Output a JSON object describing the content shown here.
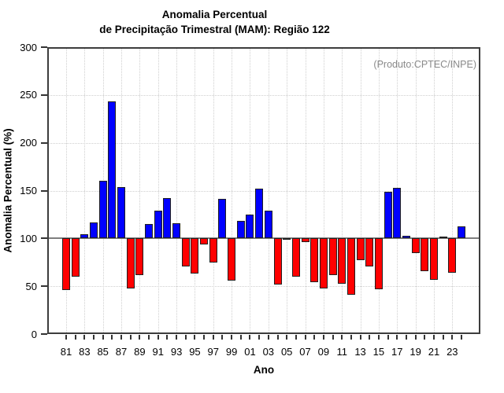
{
  "figure": {
    "title_line1": "Anomalia Percentual",
    "title_line2": "de Precipitação Trimestral (MAM): Região 122",
    "annotation": "(Produto:CPTEC/INPE)",
    "xlabel": "Ano",
    "ylabel": "Anomalia Percentual (%)"
  },
  "chart_data": {
    "type": "bar",
    "title": "Anomalia Percentual de Precipitação Trimestral (MAM): Região 122",
    "subtitle": "(Produto:CPTEC/INPE)",
    "xlabel": "Ano",
    "ylabel": "Anomalia Percentual (%)",
    "ylim": [
      0,
      300
    ],
    "yticks": [
      0,
      50,
      100,
      150,
      200,
      250,
      300
    ],
    "baseline": 100,
    "grid": true,
    "legend_position": "none",
    "bar_color_above": "#0000ff",
    "bar_color_below": "#ff0000",
    "baseline_color": "#7f7f7f",
    "grid_color": "#cfcfcf",
    "annotation_color": "#8a8a8a",
    "x": [
      1981,
      1982,
      1983,
      1984,
      1985,
      1986,
      1987,
      1988,
      1989,
      1990,
      1991,
      1992,
      1993,
      1994,
      1995,
      1996,
      1997,
      1998,
      1999,
      2000,
      2001,
      2002,
      2003,
      2004,
      2005,
      2006,
      2007,
      2008,
      2009,
      2010,
      2011,
      2012,
      2013,
      2014,
      2015,
      2016,
      2017,
      2018,
      2019,
      2020,
      2021,
      2022,
      2023,
      2024
    ],
    "x_tick_labels": [
      "81",
      "83",
      "85",
      "87",
      "89",
      "91",
      "93",
      "95",
      "97",
      "99",
      "01",
      "03",
      "05",
      "07",
      "09",
      "11",
      "13",
      "15",
      "17",
      "19",
      "21",
      "23"
    ],
    "values": [
      46,
      60,
      104,
      117,
      160,
      243,
      154,
      48,
      62,
      115,
      129,
      142,
      116,
      71,
      63,
      94,
      75,
      141,
      56,
      118,
      125,
      152,
      129,
      52,
      100,
      60,
      96,
      54,
      48,
      62,
      53,
      41,
      77,
      71,
      47,
      149,
      153,
      103,
      85,
      66,
      57,
      102,
      64,
      113
    ]
  }
}
